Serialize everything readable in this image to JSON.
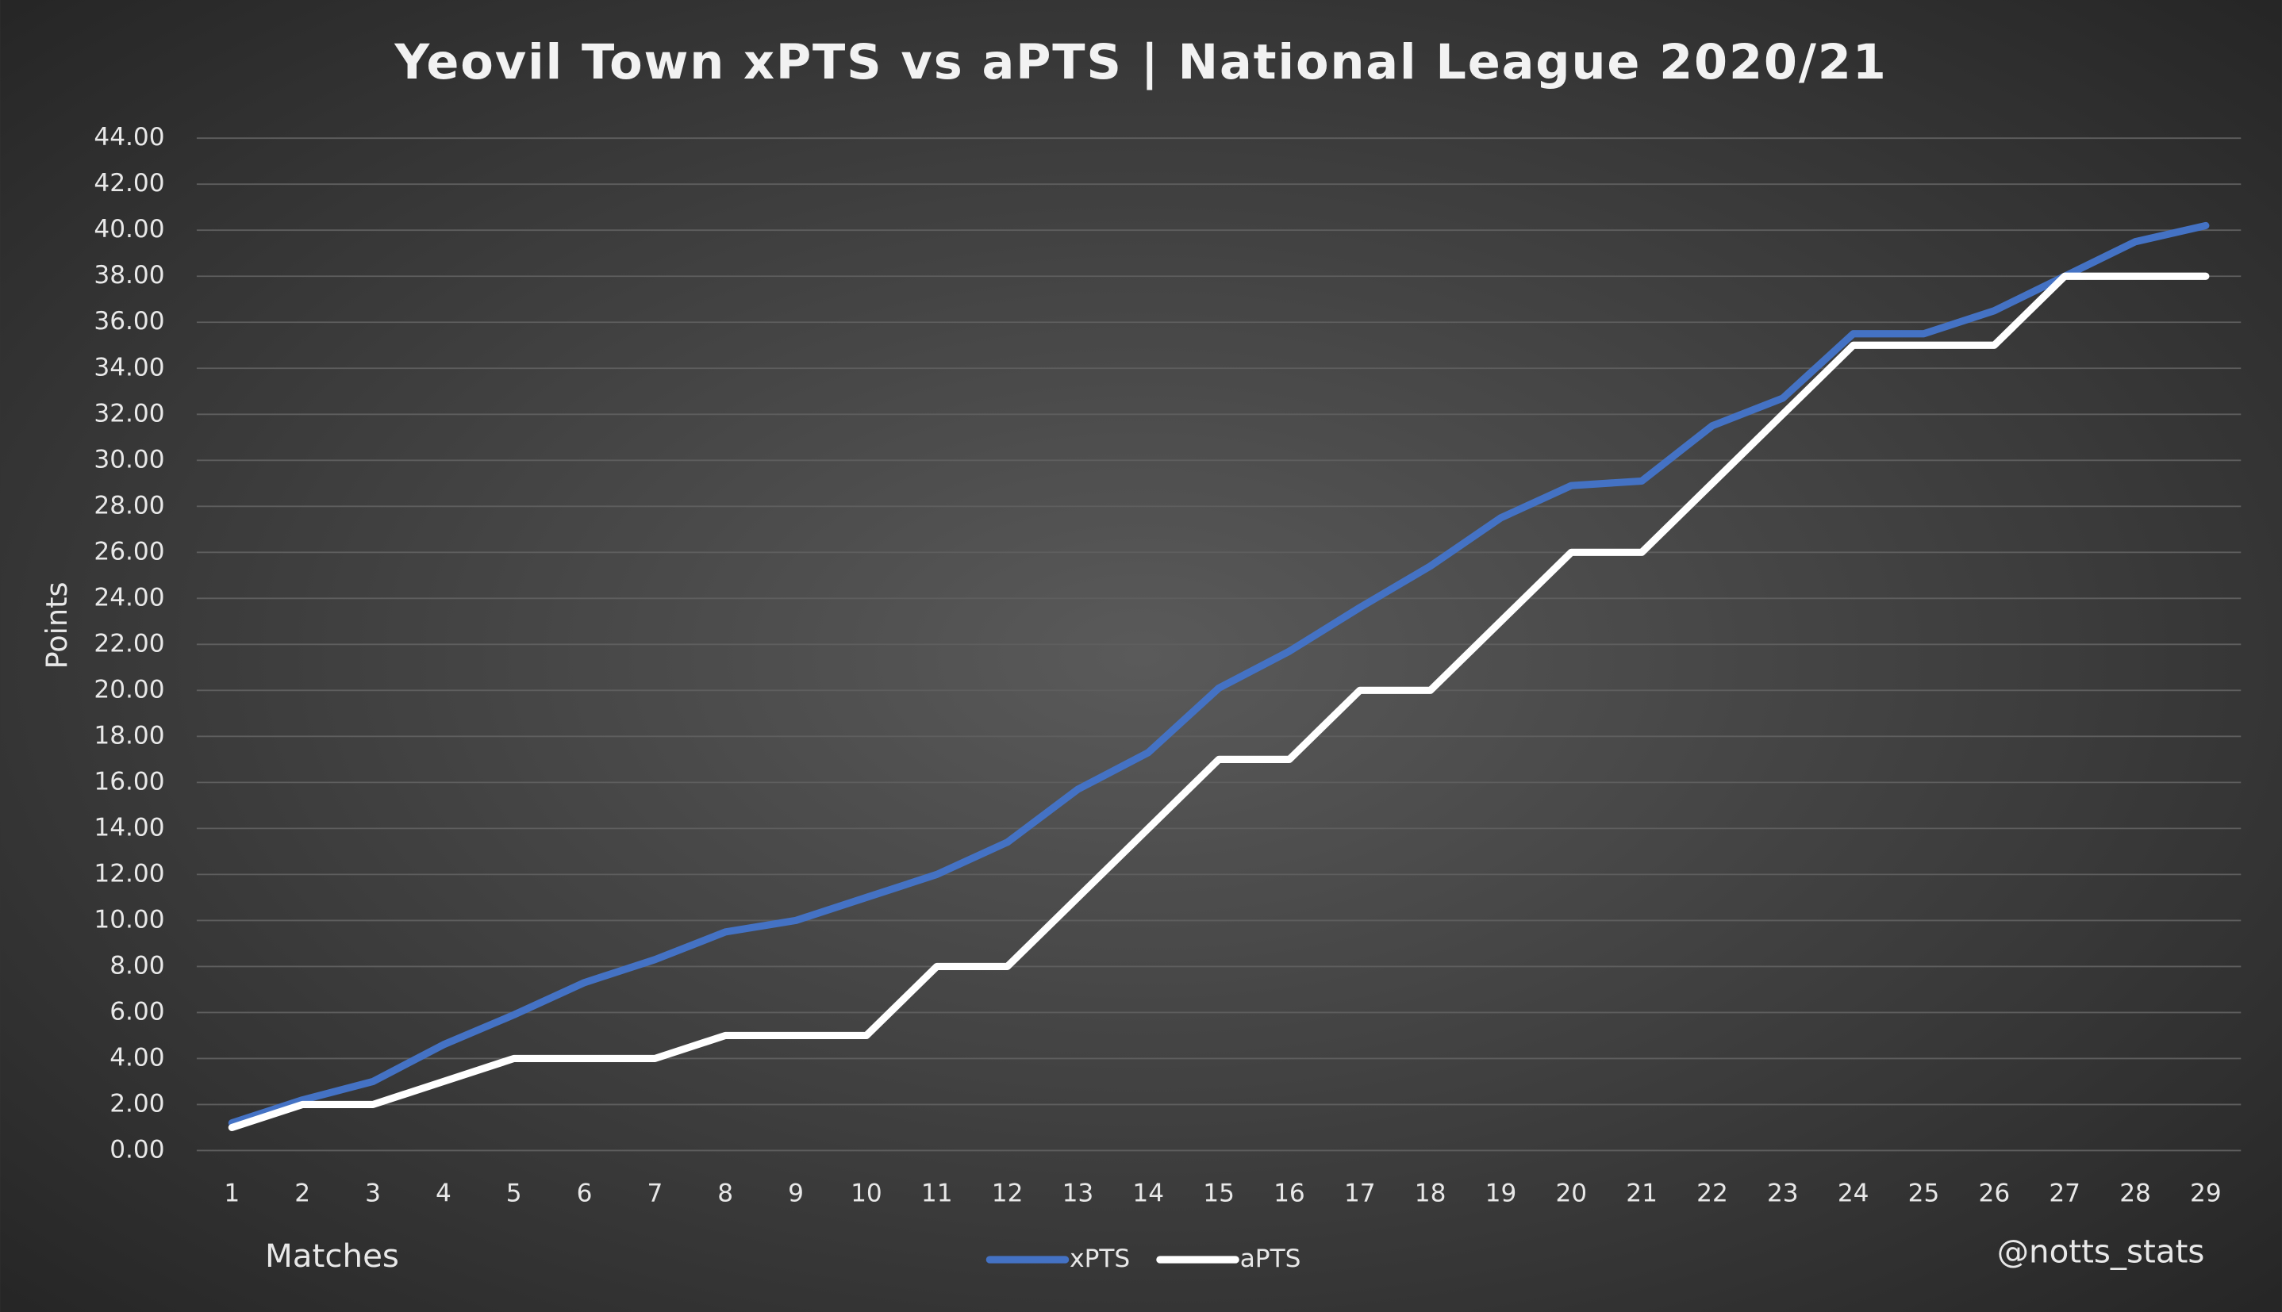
{
  "chart_data": {
    "type": "line",
    "title": "Yeovil Town xPTS vs aPTS | National League 2020/21",
    "y_label": "Points",
    "x_label": "Matches",
    "credit": "@notts_stats",
    "categories": [
      "1",
      "2",
      "3",
      "4",
      "5",
      "6",
      "7",
      "8",
      "9",
      "10",
      "11",
      "12",
      "13",
      "14",
      "15",
      "16",
      "17",
      "18",
      "19",
      "20",
      "21",
      "22",
      "23",
      "24",
      "25",
      "26",
      "27",
      "28",
      "29"
    ],
    "series": [
      {
        "name": "xPTS",
        "color": "#4472c4",
        "values": [
          1.2,
          2.2,
          3.0,
          4.6,
          5.9,
          7.3,
          8.3,
          9.5,
          10.0,
          11.0,
          12.0,
          13.4,
          15.7,
          17.3,
          20.1,
          21.7,
          23.6,
          25.4,
          27.5,
          28.9,
          29.1,
          31.5,
          32.7,
          35.5,
          35.5,
          36.5,
          38.0,
          39.5,
          40.2
        ]
      },
      {
        "name": "aPTS",
        "color": "#ffffff",
        "values": [
          1,
          2,
          2,
          3,
          4,
          4,
          4,
          5,
          5,
          5,
          8,
          8,
          11,
          14,
          17,
          17,
          20,
          20,
          23,
          26,
          26,
          29,
          32,
          35,
          35,
          35,
          38,
          38,
          38
        ]
      }
    ],
    "ylim": [
      0,
      44
    ],
    "yticks": [
      {
        "value": 0,
        "label": "0.00"
      },
      {
        "value": 2,
        "label": "2.00"
      },
      {
        "value": 4,
        "label": "4.00"
      },
      {
        "value": 6,
        "label": "6.00"
      },
      {
        "value": 8,
        "label": "8.00"
      },
      {
        "value": 10,
        "label": "10.00"
      },
      {
        "value": 12,
        "label": "12.00"
      },
      {
        "value": 14,
        "label": "14.00"
      },
      {
        "value": 16,
        "label": "16.00"
      },
      {
        "value": 18,
        "label": "18.00"
      },
      {
        "value": 20,
        "label": "20.00"
      },
      {
        "value": 22,
        "label": "22.00"
      },
      {
        "value": 24,
        "label": "24.00"
      },
      {
        "value": 26,
        "label": "26.00"
      },
      {
        "value": 28,
        "label": "28.00"
      },
      {
        "value": 30,
        "label": "30.00"
      },
      {
        "value": 32,
        "label": "32.00"
      },
      {
        "value": 34,
        "label": "34.00"
      },
      {
        "value": 36,
        "label": "36.00"
      },
      {
        "value": 38,
        "label": "38.00"
      },
      {
        "value": 40,
        "label": "40.00"
      },
      {
        "value": 42,
        "label": "42.00"
      },
      {
        "value": 44,
        "label": "44.00"
      }
    ],
    "grid": true
  }
}
